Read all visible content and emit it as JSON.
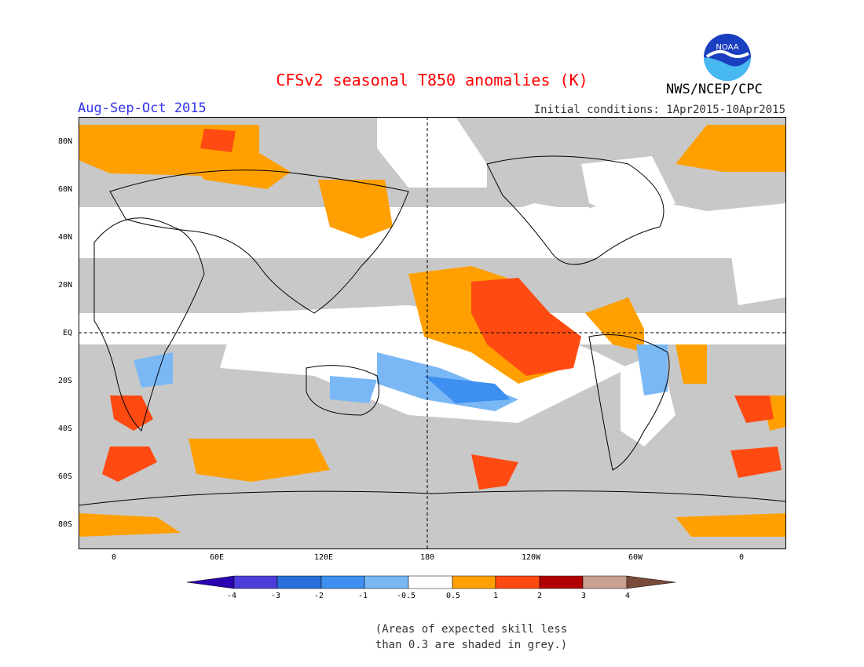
{
  "title": "CFSv2 seasonal T850 anomalies (K)",
  "period": "Aug-Sep-Oct 2015",
  "initial_conditions": "Initial conditions: 1Apr2015-10Apr2015",
  "agency": "NWS/NCEP/CPC",
  "logo_text": "NOAA",
  "skill_note_line1": "(Areas of expected skill less",
  "skill_note_line2": "than 0.3 are shaded in grey.)",
  "map": {
    "projection": "equirectangular",
    "center_longitude": 180,
    "lat_labels": [
      "80N",
      "60N",
      "40N",
      "20N",
      "EQ",
      "20S",
      "40S",
      "60S",
      "80S"
    ],
    "lon_labels": [
      "0",
      "60E",
      "120E",
      "180",
      "120W",
      "60W",
      "0"
    ],
    "dashed_reference_lines": [
      "EQ",
      "180"
    ],
    "features": [
      {
        "name": "Nino region warm anomaly",
        "anomaly": "1 to 2"
      },
      {
        "name": "Eastern Pacific warm anomaly",
        "anomaly": "0.5 to 1"
      },
      {
        "name": "South Pacific cool anomaly",
        "anomaly": "-1 to -0.5"
      },
      {
        "name": "Southern Ocean warm patches",
        "anomaly": "0.5 to 2"
      }
    ]
  },
  "colorbar": {
    "labels": [
      "-4",
      "-3",
      "-2",
      "-1",
      "-0.5",
      "0.5",
      "1",
      "2",
      "3",
      "4"
    ],
    "colors": [
      "#2a00b0",
      "#4c3ddb",
      "#2a6fdb",
      "#3d8ff0",
      "#7ab8f5",
      "#ffffff",
      "#ffa000",
      "#ff4a12",
      "#b00000",
      "#c8a090",
      "#7a4a3a"
    ]
  },
  "colors": {
    "grey_skill": "#c8c8c8",
    "warm_05_1": "#ffa000",
    "warm_1_2": "#ff4a12",
    "warm_2_3": "#b00000",
    "cool_05_1": "#7ab8f5",
    "cool_1_2": "#3d8ff0"
  }
}
